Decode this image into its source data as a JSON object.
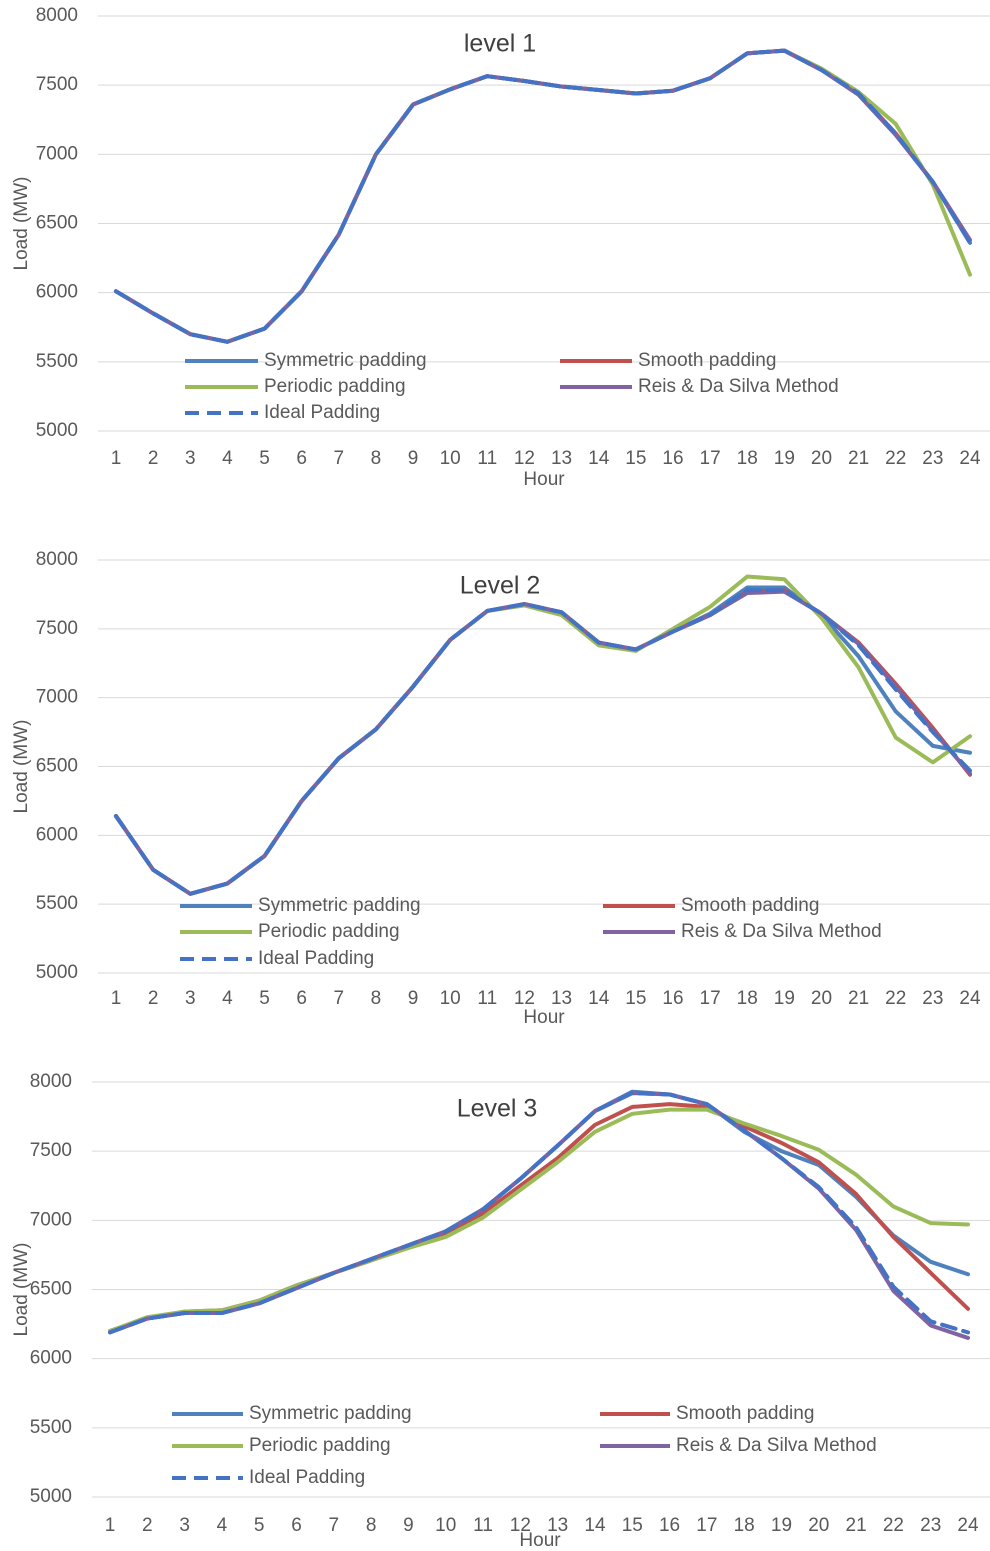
{
  "chart_data": [
    {
      "type": "line",
      "title": "level 1",
      "x_label": "Hour",
      "y_label": "Load (MW)",
      "categories": [
        1,
        2,
        3,
        4,
        5,
        6,
        7,
        8,
        9,
        10,
        11,
        12,
        13,
        14,
        15,
        16,
        17,
        18,
        19,
        20,
        21,
        22,
        23,
        24
      ],
      "ylim": [
        5000,
        8000
      ],
      "yticks": [
        5000,
        5500,
        6000,
        6500,
        7000,
        7500,
        8000
      ],
      "grid": true,
      "series": [
        {
          "name": "Symmetric padding",
          "color": "#4f81bd",
          "line_style": "solid",
          "values": [
            6010,
            5850,
            5700,
            5645,
            5740,
            6010,
            6420,
            7000,
            7360,
            7470,
            7565,
            7530,
            7490,
            7465,
            7440,
            7460,
            7550,
            7730,
            7750,
            7610,
            7440,
            7150,
            6800,
            6360
          ]
        },
        {
          "name": "Smooth padding",
          "color": "#c0504d",
          "line_style": "solid",
          "values": [
            6010,
            5850,
            5700,
            5645,
            5740,
            6010,
            6420,
            7000,
            7360,
            7470,
            7565,
            7530,
            7490,
            7465,
            7440,
            7460,
            7550,
            7730,
            7750,
            7610,
            7440,
            7150,
            6800,
            6380
          ]
        },
        {
          "name": "Periodic padding",
          "color": "#9bbb59",
          "line_style": "solid",
          "values": [
            6010,
            5850,
            5700,
            5645,
            5740,
            6010,
            6420,
            7000,
            7360,
            7470,
            7565,
            7530,
            7490,
            7465,
            7440,
            7460,
            7550,
            7730,
            7750,
            7620,
            7450,
            7220,
            6780,
            6130
          ]
        },
        {
          "name": "Reis & Da Silva Method",
          "color": "#8064a2",
          "line_style": "solid",
          "values": [
            6010,
            5850,
            5700,
            5645,
            5740,
            6010,
            6420,
            7000,
            7360,
            7470,
            7565,
            7530,
            7490,
            7465,
            7440,
            7460,
            7550,
            7730,
            7750,
            7610,
            7430,
            7140,
            6800,
            6380
          ]
        },
        {
          "name": "Ideal Padding",
          "color": "#4472c4",
          "line_style": "dashed",
          "values": [
            6010,
            5850,
            5700,
            5645,
            5740,
            6010,
            6420,
            7000,
            7360,
            7470,
            7565,
            7530,
            7490,
            7465,
            7440,
            7460,
            7550,
            7730,
            7750,
            7610,
            7440,
            7150,
            6800,
            6360
          ]
        }
      ]
    },
    {
      "type": "line",
      "title": "Level 2",
      "x_label": "Hour",
      "y_label": "Load (MW)",
      "categories": [
        1,
        2,
        3,
        4,
        5,
        6,
        7,
        8,
        9,
        10,
        11,
        12,
        13,
        14,
        15,
        16,
        17,
        18,
        19,
        20,
        21,
        22,
        23,
        24
      ],
      "ylim": [
        5000,
        8000
      ],
      "yticks": [
        5000,
        5500,
        6000,
        6500,
        7000,
        7500,
        8000
      ],
      "grid": true,
      "series": [
        {
          "name": "Symmetric padding",
          "color": "#4f81bd",
          "line_style": "solid",
          "values": [
            6140,
            5750,
            5575,
            5650,
            5850,
            6250,
            6560,
            6770,
            7080,
            7420,
            7630,
            7680,
            7620,
            7400,
            7350,
            7480,
            7610,
            7800,
            7800,
            7600,
            7300,
            6900,
            6650,
            6600
          ]
        },
        {
          "name": "Smooth padding",
          "color": "#c0504d",
          "line_style": "solid",
          "values": [
            6140,
            5750,
            5575,
            5650,
            5850,
            6250,
            6560,
            6770,
            7080,
            7420,
            7630,
            7680,
            7620,
            7400,
            7350,
            7480,
            7600,
            7770,
            7780,
            7610,
            7400,
            7100,
            6780,
            6440
          ]
        },
        {
          "name": "Periodic padding",
          "color": "#9bbb59",
          "line_style": "solid",
          "values": [
            6140,
            5750,
            5575,
            5650,
            5850,
            6250,
            6560,
            6770,
            7080,
            7420,
            7630,
            7670,
            7600,
            7380,
            7340,
            7500,
            7660,
            7880,
            7860,
            7580,
            7220,
            6710,
            6530,
            6720
          ]
        },
        {
          "name": "Reis & Da Silva Method",
          "color": "#8064a2",
          "line_style": "solid",
          "values": [
            6140,
            5750,
            5575,
            5650,
            5850,
            6250,
            6560,
            6770,
            7080,
            7420,
            7630,
            7680,
            7620,
            7400,
            7350,
            7480,
            7600,
            7760,
            7770,
            7610,
            7390,
            7080,
            6760,
            6450
          ]
        },
        {
          "name": "Ideal Padding",
          "color": "#4472c4",
          "line_style": "dashed",
          "values": [
            6140,
            5750,
            5575,
            5650,
            5850,
            6250,
            6560,
            6770,
            7080,
            7420,
            7630,
            7680,
            7620,
            7400,
            7350,
            7480,
            7600,
            7780,
            7780,
            7610,
            7380,
            7060,
            6750,
            6470
          ]
        }
      ]
    },
    {
      "type": "line",
      "title": "Level 3",
      "x_label": "Hour",
      "y_label": "Load (MW)",
      "categories": [
        1,
        2,
        3,
        4,
        5,
        6,
        7,
        8,
        9,
        10,
        11,
        12,
        13,
        14,
        15,
        16,
        17,
        18,
        19,
        20,
        21,
        22,
        23,
        24
      ],
      "ylim": [
        5000,
        8000
      ],
      "yticks": [
        5000,
        5500,
        6000,
        6500,
        7000,
        7500,
        8000
      ],
      "grid": true,
      "series": [
        {
          "name": "Symmetric padding",
          "color": "#4f81bd",
          "line_style": "solid",
          "values": [
            6200,
            6290,
            6330,
            6340,
            6400,
            6510,
            6620,
            6720,
            6820,
            6920,
            7080,
            7300,
            7540,
            7790,
            7930,
            7910,
            7840,
            7640,
            7500,
            7400,
            7170,
            6890,
            6700,
            6610
          ]
        },
        {
          "name": "Smooth padding",
          "color": "#c0504d",
          "line_style": "solid",
          "values": [
            6200,
            6290,
            6340,
            6350,
            6420,
            6530,
            6620,
            6710,
            6810,
            6900,
            7050,
            7250,
            7450,
            7690,
            7820,
            7840,
            7820,
            7680,
            7560,
            7420,
            7190,
            6880,
            6620,
            6360
          ]
        },
        {
          "name": "Periodic padding",
          "color": "#9bbb59",
          "line_style": "solid",
          "values": [
            6200,
            6300,
            6340,
            6350,
            6420,
            6530,
            6620,
            6710,
            6800,
            6880,
            7020,
            7220,
            7420,
            7640,
            7770,
            7800,
            7800,
            7700,
            7610,
            7510,
            7330,
            7100,
            6980,
            6970
          ]
        },
        {
          "name": "Reis & Da Silva Method",
          "color": "#8064a2",
          "line_style": "solid",
          "values": [
            6190,
            6290,
            6330,
            6330,
            6400,
            6510,
            6620,
            6720,
            6820,
            6920,
            7080,
            7300,
            7540,
            7790,
            7920,
            7910,
            7840,
            7650,
            7450,
            7230,
            6930,
            6490,
            6240,
            6150
          ]
        },
        {
          "name": "Ideal Padding",
          "color": "#4472c4",
          "line_style": "dashed",
          "values": [
            6190,
            6290,
            6330,
            6330,
            6400,
            6510,
            6620,
            6720,
            6820,
            6920,
            7080,
            7300,
            7540,
            7790,
            7920,
            7910,
            7840,
            7650,
            7450,
            7240,
            6950,
            6520,
            6270,
            6190
          ]
        }
      ]
    }
  ]
}
